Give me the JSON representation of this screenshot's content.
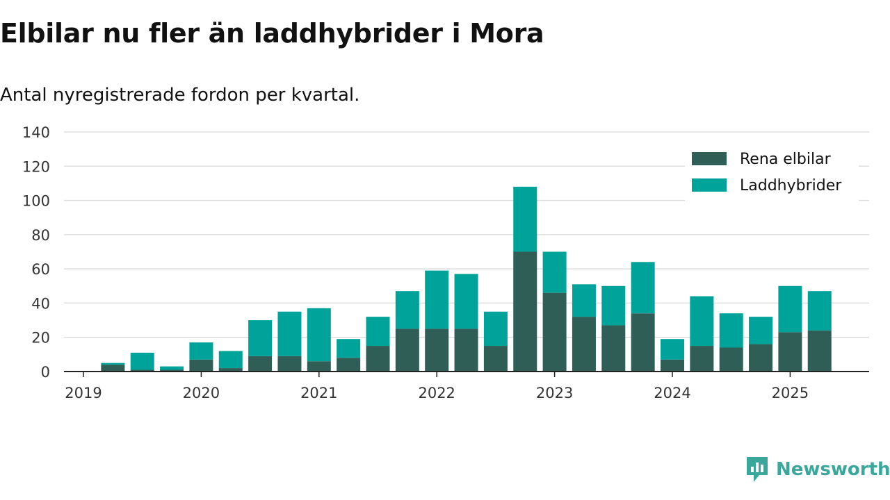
{
  "title": "Elbilar nu fler än laddhybrider i Mora",
  "subtitle": "Antal nyregistrerade fordon per kvartal.",
  "brand": {
    "name": "Newsworthy",
    "icon": "newsworthy-logo-icon"
  },
  "colors": {
    "elbilar": "#2f5e56",
    "laddhybrider": "#00a39a",
    "grid": "#dddddd",
    "axis": "#222222",
    "brand": "#3aa79b"
  },
  "chart_data": {
    "type": "bar",
    "stacked": true,
    "title": "Elbilar nu fler än laddhybrider i Mora",
    "subtitle": "Antal nyregistrerade fordon per kvartal.",
    "xlabel": "",
    "ylabel": "",
    "ylim": [
      0,
      140
    ],
    "yticks": [
      0,
      20,
      40,
      60,
      80,
      100,
      120,
      140
    ],
    "xtick_labels": [
      "2019",
      "2020",
      "2021",
      "2022",
      "2023",
      "2024",
      "2025"
    ],
    "grid": true,
    "legend_position": "top-right",
    "categories": [
      "2019-Q1",
      "2019-Q2",
      "2019-Q3",
      "2019-Q4",
      "2020-Q1",
      "2020-Q2",
      "2020-Q3",
      "2020-Q4",
      "2021-Q1",
      "2021-Q2",
      "2021-Q3",
      "2021-Q4",
      "2022-Q1",
      "2022-Q2",
      "2022-Q3",
      "2022-Q4",
      "2023-Q1",
      "2023-Q2",
      "2023-Q3",
      "2023-Q4",
      "2024-Q1",
      "2024-Q2",
      "2024-Q3",
      "2024-Q4",
      "2025-Q1",
      "2025-Q2"
    ],
    "series": [
      {
        "name": "Rena elbilar",
        "color": "#2f5e56",
        "values": [
          0,
          4,
          1,
          1,
          7,
          2,
          9,
          9,
          6,
          8,
          15,
          25,
          25,
          25,
          15,
          70,
          46,
          32,
          27,
          34,
          7,
          15,
          14,
          16,
          23,
          24
        ]
      },
      {
        "name": "Laddhybrider",
        "color": "#00a39a",
        "values": [
          0,
          1,
          10,
          2,
          10,
          10,
          21,
          26,
          31,
          11,
          17,
          22,
          34,
          32,
          20,
          38,
          24,
          19,
          23,
          30,
          12,
          29,
          20,
          16,
          27,
          23
        ]
      }
    ]
  }
}
